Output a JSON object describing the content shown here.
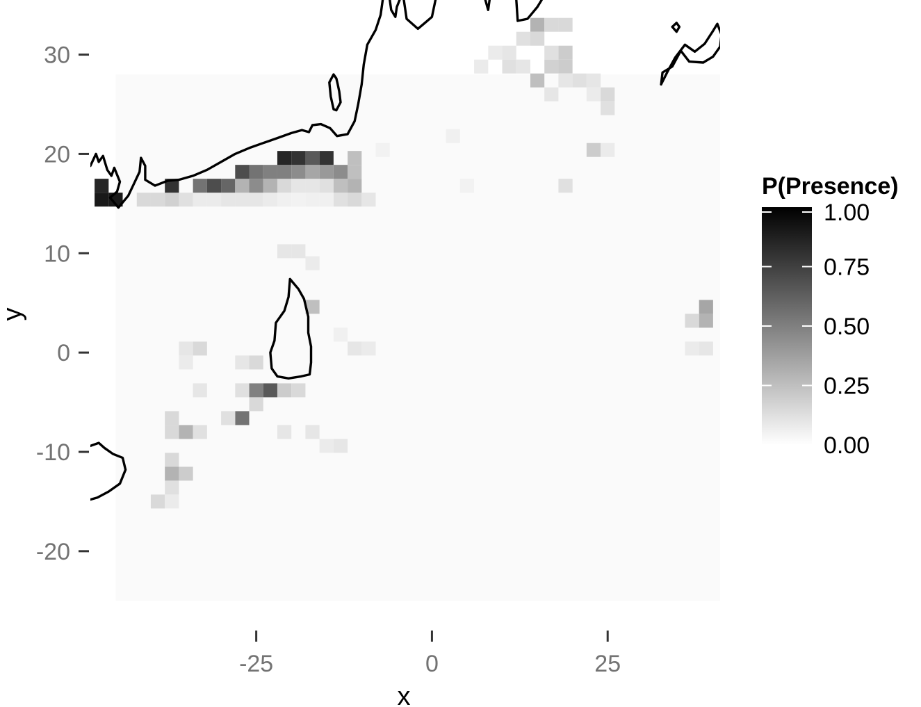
{
  "chart_data": {
    "type": "heatmap",
    "title": "",
    "xlabel": "x",
    "ylabel": "y",
    "xlim": [
      -48.6,
      41
    ],
    "ylim": [
      -27.5,
      35.5
    ],
    "x_ticks": [
      {
        "value": -25,
        "label": "-25"
      },
      {
        "value": 0,
        "label": "0"
      },
      {
        "value": 25,
        "label": "25"
      }
    ],
    "y_ticks": [
      {
        "value": 30,
        "label": "30"
      },
      {
        "value": 20,
        "label": "20"
      },
      {
        "value": 10,
        "label": "10"
      },
      {
        "value": 0,
        "label": "0"
      },
      {
        "value": -10,
        "label": "-10"
      },
      {
        "value": -20,
        "label": "-20"
      }
    ],
    "grid": false,
    "legend": {
      "title": "P(Presence)",
      "position": "right",
      "range": [
        0,
        1
      ],
      "ticks": [
        {
          "value": 1.0,
          "label": "1.00"
        },
        {
          "value": 0.75,
          "label": "0.75"
        },
        {
          "value": 0.5,
          "label": "0.50"
        },
        {
          "value": 0.25,
          "label": "0.25"
        },
        {
          "value": 0.0,
          "label": "0.00"
        }
      ],
      "colors": {
        "low": "#ffffff",
        "high": "#000000"
      }
    },
    "cell_size": [
      2,
      1.4
    ],
    "background_value": 0.02,
    "background_region": {
      "x": [
        -45,
        41
      ],
      "y": [
        -25,
        28
      ]
    },
    "cells": [
      [
        -47,
        15.4,
        0.9
      ],
      [
        -45,
        15.4,
        0.9
      ],
      [
        -47,
        16.8,
        0.85
      ],
      [
        -41,
        15.4,
        0.15
      ],
      [
        -39,
        15.4,
        0.15
      ],
      [
        -37,
        15.4,
        0.18
      ],
      [
        -35,
        15.4,
        0.12
      ],
      [
        -33,
        15.4,
        0.08
      ],
      [
        -31,
        15.4,
        0.08
      ],
      [
        -29,
        15.4,
        0.1
      ],
      [
        -27,
        15.4,
        0.1
      ],
      [
        -25,
        15.4,
        0.1
      ],
      [
        -23,
        15.4,
        0.08
      ],
      [
        -21,
        15.4,
        0.06
      ],
      [
        -19,
        15.4,
        0.05
      ],
      [
        -17,
        15.4,
        0.06
      ],
      [
        -15,
        15.4,
        0.06
      ],
      [
        -13,
        15.4,
        0.12
      ],
      [
        -11,
        15.4,
        0.15
      ],
      [
        -9,
        15.4,
        0.1
      ],
      [
        -37,
        16.8,
        0.8
      ],
      [
        -33,
        16.8,
        0.55
      ],
      [
        -31,
        16.8,
        0.7
      ],
      [
        -29,
        16.8,
        0.6
      ],
      [
        -27,
        16.8,
        0.3
      ],
      [
        -25,
        16.8,
        0.45
      ],
      [
        -23,
        16.8,
        0.3
      ],
      [
        -21,
        16.8,
        0.15
      ],
      [
        -19,
        16.8,
        0.1
      ],
      [
        -17,
        16.8,
        0.1
      ],
      [
        -15,
        16.8,
        0.12
      ],
      [
        -13,
        16.8,
        0.25
      ],
      [
        -11,
        16.8,
        0.3
      ],
      [
        -27,
        18.2,
        0.7
      ],
      [
        -25,
        18.2,
        0.55
      ],
      [
        -23,
        18.2,
        0.5
      ],
      [
        -21,
        18.2,
        0.5
      ],
      [
        -19,
        18.2,
        0.45
      ],
      [
        -17,
        18.2,
        0.35
      ],
      [
        -15,
        18.2,
        0.4
      ],
      [
        -13,
        18.2,
        0.45
      ],
      [
        -11,
        18.2,
        0.25
      ],
      [
        -21,
        19.6,
        0.85
      ],
      [
        -19,
        19.6,
        0.8
      ],
      [
        -17,
        19.6,
        0.65
      ],
      [
        -15,
        19.6,
        0.8
      ],
      [
        -11,
        19.6,
        0.25
      ],
      [
        -21,
        10.2,
        0.1
      ],
      [
        -19,
        10.2,
        0.1
      ],
      [
        -17,
        9.0,
        0.08
      ],
      [
        -17,
        4.6,
        0.25
      ],
      [
        -35,
        0.4,
        0.1
      ],
      [
        -33,
        0.4,
        0.15
      ],
      [
        -25,
        -1.0,
        0.15
      ],
      [
        -27,
        -1.0,
        0.1
      ],
      [
        -35,
        -1.0,
        0.08
      ],
      [
        -25,
        -3.8,
        0.5
      ],
      [
        -23,
        -3.8,
        0.65
      ],
      [
        -21,
        -3.8,
        0.2
      ],
      [
        -19,
        -3.8,
        0.15
      ],
      [
        -27,
        -3.8,
        0.12
      ],
      [
        -33,
        -3.8,
        0.1
      ],
      [
        -25,
        -5.2,
        0.15
      ],
      [
        -27,
        -6.6,
        0.55
      ],
      [
        -29,
        -6.6,
        0.12
      ],
      [
        -37,
        -6.6,
        0.15
      ],
      [
        -35,
        -8.0,
        0.3
      ],
      [
        -37,
        -8.0,
        0.15
      ],
      [
        -33,
        -8.0,
        0.12
      ],
      [
        -21,
        -8.0,
        0.1
      ],
      [
        -17,
        -8.0,
        0.1
      ],
      [
        -13,
        -9.4,
        0.1
      ],
      [
        -15,
        -9.4,
        0.08
      ],
      [
        -37,
        -10.8,
        0.15
      ],
      [
        -37,
        -12.2,
        0.3
      ],
      [
        -35,
        -12.2,
        0.2
      ],
      [
        -37,
        -13.6,
        0.12
      ],
      [
        -39,
        -15.0,
        0.15
      ],
      [
        -37,
        -15.0,
        0.08
      ],
      [
        -13,
        1.8,
        0.06
      ],
      [
        -11,
        0.4,
        0.1
      ],
      [
        -9,
        0.4,
        0.08
      ],
      [
        39,
        3.2,
        0.3
      ],
      [
        39,
        4.6,
        0.35
      ],
      [
        37,
        3.2,
        0.15
      ],
      [
        39,
        0.4,
        0.1
      ],
      [
        37,
        0.4,
        0.08
      ],
      [
        15,
        33.0,
        0.3
      ],
      [
        17,
        33.0,
        0.15
      ],
      [
        19,
        33.0,
        0.15
      ],
      [
        15,
        31.6,
        0.15
      ],
      [
        13,
        31.6,
        0.12
      ],
      [
        19,
        30.2,
        0.2
      ],
      [
        17,
        30.2,
        0.12
      ],
      [
        11,
        30.2,
        0.1
      ],
      [
        9,
        30.2,
        0.08
      ],
      [
        7,
        28.8,
        0.08
      ],
      [
        11,
        28.8,
        0.12
      ],
      [
        17,
        28.8,
        0.18
      ],
      [
        19,
        28.8,
        0.2
      ],
      [
        13,
        28.8,
        0.1
      ],
      [
        15,
        27.4,
        0.25
      ],
      [
        21,
        27.4,
        0.12
      ],
      [
        23,
        27.4,
        0.1
      ],
      [
        19,
        27.4,
        0.1
      ],
      [
        17,
        26.0,
        0.1
      ],
      [
        23,
        26.0,
        0.08
      ],
      [
        25,
        26.0,
        0.15
      ],
      [
        25,
        24.6,
        0.12
      ],
      [
        23,
        20.4,
        0.2
      ],
      [
        25,
        20.4,
        0.08
      ],
      [
        19,
        16.8,
        0.12
      ],
      [
        3,
        21.8,
        0.06
      ],
      [
        5,
        16.8,
        0.05
      ],
      [
        -7,
        20.4,
        0.05
      ]
    ],
    "coastlines": [
      [
        [
          -48.6,
          18.8
        ],
        [
          -47.8,
          20.0
        ],
        [
          -47.4,
          19.2
        ],
        [
          -46.8,
          19.8
        ],
        [
          -46.2,
          18.4
        ],
        [
          -45.6,
          17.8
        ],
        [
          -45.2,
          18.6
        ],
        [
          -44.4,
          17.2
        ],
        [
          -44.8,
          16.2
        ],
        [
          -45.8,
          15.6
        ],
        [
          -44.6,
          14.6
        ],
        [
          -43.2,
          15.8
        ],
        [
          -42.4,
          17.0
        ],
        [
          -41.6,
          18.2
        ],
        [
          -41.4,
          19.6
        ],
        [
          -40.8,
          18.8
        ],
        [
          -40.8,
          17.4
        ],
        [
          -39.4,
          16.8
        ],
        [
          -37.6,
          17.3
        ],
        [
          -36.0,
          17.4
        ],
        [
          -34.0,
          17.8
        ],
        [
          -32.0,
          18.4
        ],
        [
          -30.0,
          19.2
        ],
        [
          -28.0,
          20.0
        ],
        [
          -26.0,
          20.6
        ],
        [
          -24.0,
          21.1
        ],
        [
          -22.0,
          21.6
        ],
        [
          -20.0,
          22.1
        ],
        [
          -18.5,
          22.4
        ],
        [
          -17.5,
          22.2
        ],
        [
          -17.0,
          22.9
        ],
        [
          -15.8,
          23.0
        ],
        [
          -14.5,
          22.6
        ],
        [
          -13.5,
          21.8
        ],
        [
          -12.0,
          22.0
        ],
        [
          -11.0,
          23.3
        ],
        [
          -10.5,
          25.0
        ],
        [
          -10.0,
          27.0
        ],
        [
          -9.7,
          29.0
        ],
        [
          -9.2,
          31.0
        ],
        [
          -8.0,
          32.5
        ],
        [
          -7.3,
          34.0
        ],
        [
          -7.0,
          35.5
        ]
      ],
      [
        [
          -14.0,
          28.0
        ],
        [
          -14.6,
          27.2
        ],
        [
          -14.4,
          25.8
        ],
        [
          -14.0,
          24.5
        ],
        [
          -13.6,
          24.4
        ],
        [
          -13.0,
          25.2
        ],
        [
          -13.2,
          26.3
        ],
        [
          -13.4,
          27.0
        ],
        [
          -13.6,
          27.6
        ],
        [
          -14.0,
          28.0
        ]
      ],
      [
        [
          -6.0,
          35.5
        ],
        [
          -5.8,
          34.5
        ],
        [
          -5.2,
          33.8
        ],
        [
          -5.0,
          34.8
        ],
        [
          -4.6,
          35.5
        ]
      ],
      [
        [
          -4.0,
          35.5
        ],
        [
          -3.6,
          33.6
        ],
        [
          -2.0,
          32.6
        ],
        [
          -1.0,
          33.2
        ],
        [
          0.0,
          33.8
        ],
        [
          0.5,
          35.5
        ]
      ],
      [
        [
          7.6,
          35.5
        ],
        [
          8.0,
          34.5
        ],
        [
          8.2,
          35.5
        ]
      ],
      [
        [
          12.0,
          35.5
        ],
        [
          12.2,
          33.4
        ],
        [
          13.6,
          33.6
        ],
        [
          15.0,
          34.8
        ],
        [
          15.6,
          35.5
        ]
      ],
      [
        [
          32.6,
          27.0
        ],
        [
          32.8,
          28.2
        ],
        [
          34.2,
          28.8
        ],
        [
          35.4,
          30.4
        ],
        [
          36.6,
          29.3
        ],
        [
          38.6,
          29.2
        ],
        [
          40.0,
          29.8
        ],
        [
          41.0,
          30.8
        ],
        [
          41.2,
          32.0
        ],
        [
          40.6,
          33.1
        ],
        [
          40.0,
          32.4
        ],
        [
          38.8,
          31.1
        ],
        [
          37.4,
          30.3
        ],
        [
          36.0,
          31.0
        ],
        [
          34.6,
          29.7
        ],
        [
          33.6,
          28.4
        ],
        [
          32.6,
          27.0
        ]
      ],
      [
        [
          34.2,
          32.8
        ],
        [
          34.8,
          32.3
        ],
        [
          35.2,
          32.8
        ],
        [
          34.8,
          33.2
        ],
        [
          34.2,
          32.8
        ]
      ],
      [
        [
          -20.2,
          7.4
        ],
        [
          -20.4,
          5.6
        ],
        [
          -21.0,
          4.2
        ],
        [
          -22.2,
          3.0
        ],
        [
          -22.4,
          1.2
        ],
        [
          -23.0,
          0.0
        ],
        [
          -22.8,
          -1.6
        ],
        [
          -22.0,
          -2.4
        ],
        [
          -20.4,
          -2.6
        ],
        [
          -18.6,
          -2.4
        ],
        [
          -17.4,
          -2.2
        ],
        [
          -17.2,
          -1.0
        ],
        [
          -17.2,
          0.6
        ],
        [
          -17.6,
          2.0
        ],
        [
          -17.6,
          3.6
        ],
        [
          -18.2,
          5.4
        ],
        [
          -19.0,
          6.4
        ],
        [
          -20.2,
          7.4
        ]
      ],
      [
        [
          -48.6,
          -9.4
        ],
        [
          -47.4,
          -9.1
        ],
        [
          -46.6,
          -9.6
        ],
        [
          -45.4,
          -10.2
        ],
        [
          -44.0,
          -10.6
        ],
        [
          -43.6,
          -11.8
        ],
        [
          -44.4,
          -13.2
        ],
        [
          -46.0,
          -14.0
        ],
        [
          -47.6,
          -14.6
        ],
        [
          -48.6,
          -14.8
        ]
      ]
    ]
  }
}
